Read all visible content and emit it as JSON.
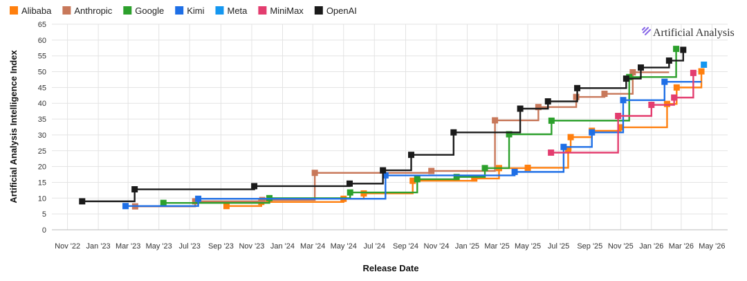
{
  "brand": {
    "name": "Artificial Analysis"
  },
  "chart_data": {
    "type": "line",
    "step": true,
    "xlabel": "Release Date",
    "ylabel": "Artificial Analysis Intelligence Index",
    "ylim": [
      0,
      65
    ],
    "yticks": [
      0,
      5,
      10,
      15,
      20,
      25,
      30,
      35,
      40,
      45,
      50,
      55,
      60,
      65
    ],
    "xlim": [
      "2022-10-01",
      "2026-06-01"
    ],
    "xticks": [
      {
        "date": "2022-11-01",
        "label": "Nov '22"
      },
      {
        "date": "2023-01-01",
        "label": "Jan '23"
      },
      {
        "date": "2023-03-01",
        "label": "Mar '23"
      },
      {
        "date": "2023-05-01",
        "label": "May '23"
      },
      {
        "date": "2023-07-01",
        "label": "Jul '23"
      },
      {
        "date": "2023-09-01",
        "label": "Sep '23"
      },
      {
        "date": "2023-11-01",
        "label": "Nov '23"
      },
      {
        "date": "2024-01-01",
        "label": "Jan '24"
      },
      {
        "date": "2024-03-01",
        "label": "Mar '24"
      },
      {
        "date": "2024-05-01",
        "label": "May '24"
      },
      {
        "date": "2024-07-01",
        "label": "Jul '24"
      },
      {
        "date": "2024-09-01",
        "label": "Sep '24"
      },
      {
        "date": "2024-11-01",
        "label": "Nov '24"
      },
      {
        "date": "2025-01-01",
        "label": "Jan '25"
      },
      {
        "date": "2025-03-01",
        "label": "Mar '25"
      },
      {
        "date": "2025-05-01",
        "label": "May '25"
      },
      {
        "date": "2025-07-01",
        "label": "Jul '25"
      },
      {
        "date": "2025-09-01",
        "label": "Sep '25"
      },
      {
        "date": "2025-11-01",
        "label": "Nov '25"
      },
      {
        "date": "2026-01-01",
        "label": "Jan '26"
      },
      {
        "date": "2026-03-01",
        "label": "Mar '26"
      },
      {
        "date": "2026-05-01",
        "label": "May '26"
      }
    ],
    "grid": true,
    "legend_position": "top-left",
    "series": [
      {
        "name": "Alibaba",
        "color": "#ff7f0e",
        "points": [
          [
            "2023-09-12",
            7.5
          ],
          [
            "2023-11-20",
            8.8
          ],
          [
            "2024-05-01",
            9.8
          ],
          [
            "2024-06-10",
            11.5
          ],
          [
            "2024-09-15",
            15.5
          ],
          [
            "2025-01-15",
            16.2
          ],
          [
            "2025-03-05",
            19.5
          ],
          [
            "2025-05-01",
            19.6
          ],
          [
            "2025-07-20",
            25.2
          ],
          [
            "2025-07-25",
            29.3
          ],
          [
            "2025-09-05",
            31.3
          ],
          [
            "2025-11-01",
            32.4
          ],
          [
            "2026-02-01",
            39.8
          ],
          [
            "2026-02-20",
            45.0
          ],
          [
            "2026-04-10",
            50.1
          ]
        ],
        "extend_to": "2026-04-15"
      },
      {
        "name": "Anthropic",
        "color": "#c8785a",
        "points": [
          [
            "2023-03-15",
            7.4
          ],
          [
            "2023-07-12",
            9.0
          ],
          [
            "2023-11-22",
            9.4
          ],
          [
            "2024-03-05",
            18.0
          ],
          [
            "2024-10-22",
            18.6
          ],
          [
            "2025-02-25",
            34.6
          ],
          [
            "2025-05-22",
            38.8
          ],
          [
            "2025-08-05",
            42.0
          ],
          [
            "2025-09-30",
            43.0
          ],
          [
            "2025-11-25",
            49.8
          ]
        ],
        "extend_to": "2026-02-05"
      },
      {
        "name": "Google",
        "color": "#2ca02c",
        "points": [
          [
            "2023-05-10",
            8.5
          ],
          [
            "2023-12-06",
            10.0
          ],
          [
            "2024-05-14",
            11.8
          ],
          [
            "2024-09-24",
            16.0
          ],
          [
            "2024-12-11",
            16.7
          ],
          [
            "2025-02-05",
            19.5
          ],
          [
            "2025-03-25",
            30.2
          ],
          [
            "2025-06-17",
            34.5
          ],
          [
            "2025-11-18",
            48.3
          ],
          [
            "2026-02-19",
            57.2
          ]
        ],
        "extend_to": "2026-02-19"
      },
      {
        "name": "Kimi",
        "color": "#1e6fe6",
        "points": [
          [
            "2023-02-24",
            7.5
          ],
          [
            "2023-07-18",
            9.8
          ],
          [
            "2024-07-23",
            17.2
          ],
          [
            "2025-04-05",
            18.3
          ],
          [
            "2025-07-11",
            26.2
          ],
          [
            "2025-09-05",
            30.8
          ],
          [
            "2025-11-06",
            41.0
          ],
          [
            "2026-01-27",
            46.8
          ]
        ],
        "extend_to": "2026-04-10"
      },
      {
        "name": "Meta",
        "color": "#1597f0",
        "points": [
          [
            "2026-04-15",
            52.2
          ]
        ],
        "extend_to": "2026-04-15"
      },
      {
        "name": "MiniMax",
        "color": "#e33d6f",
        "points": [
          [
            "2025-06-16",
            24.4
          ],
          [
            "2025-10-27",
            36.0
          ],
          [
            "2026-01-01",
            39.5
          ],
          [
            "2026-02-15",
            41.8
          ],
          [
            "2026-03-25",
            49.6
          ]
        ],
        "extend_to": "2026-03-25"
      },
      {
        "name": "OpenAI",
        "color": "#1a1a1a",
        "points": [
          [
            "2022-11-30",
            9.0
          ],
          [
            "2023-03-14",
            12.8
          ],
          [
            "2023-11-06",
            13.8
          ],
          [
            "2024-05-13",
            14.6
          ],
          [
            "2024-07-18",
            18.8
          ],
          [
            "2024-09-12",
            23.7
          ],
          [
            "2024-12-05",
            30.8
          ],
          [
            "2025-04-16",
            38.3
          ],
          [
            "2025-06-10",
            40.6
          ],
          [
            "2025-08-07",
            44.8
          ],
          [
            "2025-11-12",
            47.8
          ],
          [
            "2025-12-11",
            51.3
          ],
          [
            "2026-02-05",
            53.5
          ],
          [
            "2026-03-05",
            56.9
          ]
        ],
        "extend_to": "2026-03-05"
      }
    ]
  }
}
